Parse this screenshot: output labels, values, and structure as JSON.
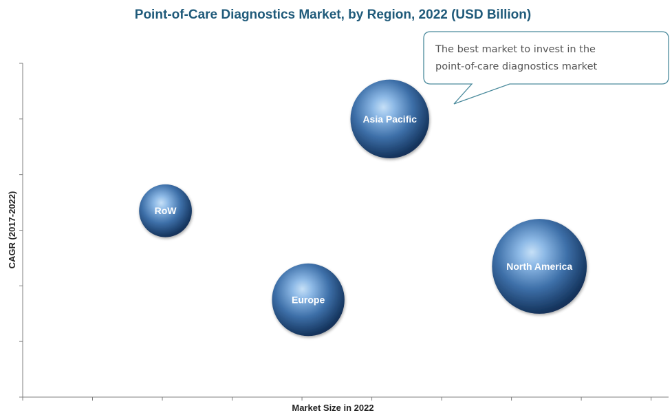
{
  "chart_data": {
    "type": "scatter",
    "title": "Point-of-Care Diagnostics Market, by Region, 2022 (USD Billion)",
    "xlabel": "Market Size in 2022",
    "ylabel": "CAGR (2017-2022)",
    "xlim": [
      0,
      9.5
    ],
    "ylim": [
      0,
      6
    ],
    "grid": false,
    "legend": "none",
    "series": [
      {
        "points": [
          {
            "label": "RoW",
            "x": 2.1,
            "y": 3.35,
            "size": 0.45
          },
          {
            "label": "Europe",
            "x": 4.2,
            "y": 1.75,
            "size": 0.85
          },
          {
            "label": "Asia Pacific",
            "x": 5.4,
            "y": 5.0,
            "size": 1.0
          },
          {
            "label": "North America",
            "x": 7.6,
            "y": 2.35,
            "size": 1.45
          }
        ]
      }
    ],
    "annotations": [
      {
        "text_lines": [
          "The best market to invest in the",
          "point-of-care diagnostics market"
        ],
        "target": "Asia Pacific"
      }
    ]
  },
  "colors": {
    "title": "#1f5a7a",
    "bubble_light": "#a9cbef",
    "bubble_mid": "#5b8fc8",
    "bubble_dark": "#16365e",
    "axis": "#7f7f7f",
    "callout_border": "#4a8a9c"
  }
}
